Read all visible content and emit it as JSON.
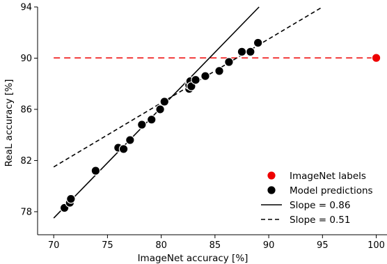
{
  "chart_data": {
    "type": "scatter",
    "xlabel": "ImageNet accuracy [%]",
    "ylabel": "ReaL accuracy [%]",
    "xlim": [
      68.5,
      101
    ],
    "ylim": [
      76.2,
      94
    ],
    "xticks": [
      70,
      75,
      80,
      85,
      90,
      95,
      100
    ],
    "yticks": [
      78,
      82,
      86,
      90,
      94
    ],
    "grid": false,
    "legend_position": "bottom-right",
    "series": [
      {
        "name": "ImageNet labels",
        "kind": "point",
        "color": "#ee0000",
        "points": [
          [
            100.0,
            90.02
          ]
        ]
      },
      {
        "name": "Model predictions",
        "kind": "point",
        "color": "#000000",
        "points": [
          [
            71.0,
            78.3
          ],
          [
            71.5,
            78.7
          ],
          [
            71.6,
            79.0
          ],
          [
            73.9,
            81.2
          ],
          [
            76.0,
            83.0
          ],
          [
            76.5,
            82.9
          ],
          [
            77.1,
            83.6
          ],
          [
            78.2,
            84.8
          ],
          [
            79.1,
            85.2
          ],
          [
            79.9,
            86.0
          ],
          [
            80.3,
            86.6
          ],
          [
            82.6,
            87.6
          ],
          [
            82.6,
            87.9
          ],
          [
            82.7,
            88.2
          ],
          [
            82.8,
            87.8
          ],
          [
            83.2,
            88.3
          ],
          [
            84.1,
            88.6
          ],
          [
            85.4,
            89.0
          ],
          [
            86.3,
            89.7
          ],
          [
            87.5,
            90.5
          ],
          [
            88.3,
            90.5
          ],
          [
            89.0,
            91.2
          ]
        ]
      },
      {
        "name": "Slope = 0.86",
        "kind": "line",
        "dash": "solid",
        "color": "#000000",
        "points": [
          [
            70.0,
            77.5
          ],
          [
            89.1,
            94.0
          ]
        ]
      },
      {
        "name": "Slope = 0.51",
        "kind": "line",
        "dash": "dashed",
        "color": "#000000",
        "points": [
          [
            70.0,
            81.5
          ],
          [
            95.0,
            94.0
          ]
        ]
      }
    ],
    "reference_lines": [
      {
        "y": 90.02,
        "x_range": [
          70.0,
          100.0
        ],
        "color": "#ee0000",
        "dash": "dashed"
      }
    ]
  }
}
